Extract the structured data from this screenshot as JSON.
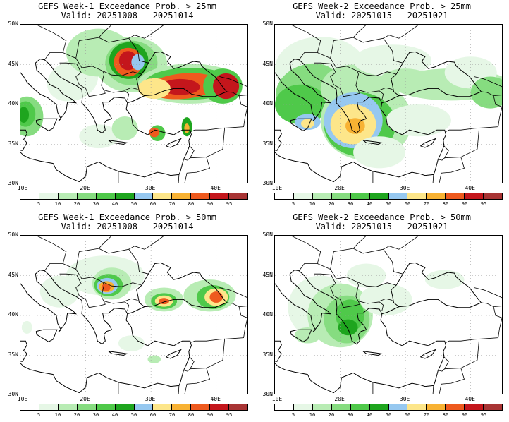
{
  "panels": [
    {
      "title_line1": "GEFS Week-1 Exceedance Prob. > 25mm",
      "title_line2": "Valid: 20251008 - 20251014"
    },
    {
      "title_line1": "GEFS Week-2 Exceedance Prob. > 25mm",
      "title_line2": "Valid: 20251015 - 20251021"
    },
    {
      "title_line1": "GEFS Week-1 Exceedance Prob. > 50mm",
      "title_line2": "Valid: 20251008 - 20251014"
    },
    {
      "title_line1": "GEFS Week-2 Exceedance Prob. > 50mm",
      "title_line2": "Valid: 20251015 - 20251021"
    }
  ],
  "axes": {
    "lat_labels": [
      "50N",
      "45N",
      "40N",
      "35N",
      "30N"
    ],
    "lon_labels": [
      "10E",
      "20E",
      "30E",
      "40E"
    ]
  },
  "colorbar": {
    "labels": [
      "5",
      "10",
      "20",
      "30",
      "40",
      "50",
      "60",
      "70",
      "80",
      "90",
      "95"
    ],
    "colors": [
      "#ffffff",
      "#e6f7e6",
      "#b8ecb4",
      "#86dc80",
      "#4fc94a",
      "#1ea51e",
      "#96c8f0",
      "#fde68a",
      "#f8b233",
      "#ee5a1e",
      "#c4161c",
      "#a83434"
    ]
  }
}
